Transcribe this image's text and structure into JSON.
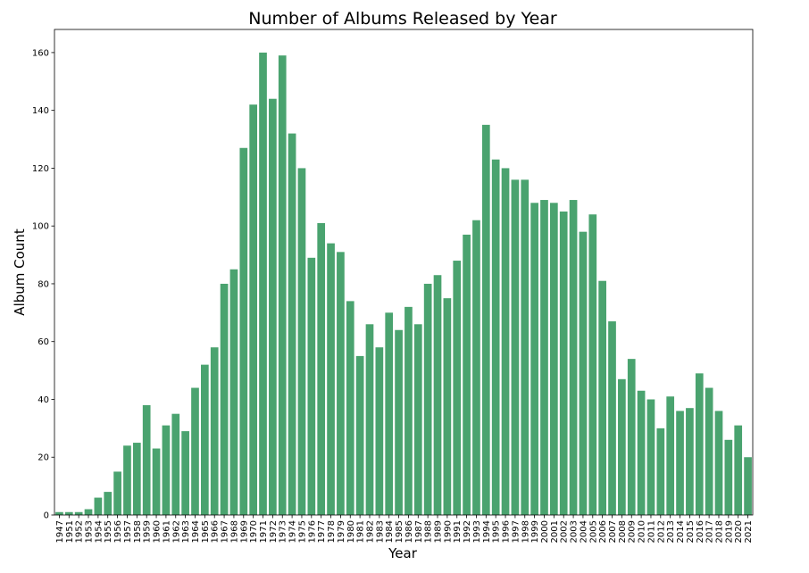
{
  "chart_data": {
    "type": "bar",
    "title": "Number of Albums Released by Year",
    "xlabel": "Year",
    "ylabel": "Album Count",
    "ylim": [
      0,
      168
    ],
    "yticks": [
      0,
      20,
      40,
      60,
      80,
      100,
      120,
      140,
      160
    ],
    "grid": false,
    "bar_color": "#4aa36f",
    "categories": [
      "1947",
      "1951",
      "1952",
      "1953",
      "1954",
      "1955",
      "1956",
      "1957",
      "1958",
      "1959",
      "1960",
      "1961",
      "1962",
      "1963",
      "1964",
      "1965",
      "1966",
      "1967",
      "1968",
      "1969",
      "1970",
      "1971",
      "1972",
      "1973",
      "1974",
      "1975",
      "1976",
      "1977",
      "1978",
      "1979",
      "1980",
      "1981",
      "1982",
      "1983",
      "1984",
      "1985",
      "1986",
      "1987",
      "1988",
      "1989",
      "1990",
      "1991",
      "1992",
      "1993",
      "1994",
      "1995",
      "1996",
      "1997",
      "1998",
      "1999",
      "2000",
      "2001",
      "2002",
      "2003",
      "2004",
      "2005",
      "2006",
      "2007",
      "2008",
      "2009",
      "2010",
      "2011",
      "2012",
      "2013",
      "2014",
      "2015",
      "2016",
      "2017",
      "2018",
      "2019",
      "2020",
      "2021"
    ],
    "values": [
      1,
      1,
      1,
      2,
      6,
      8,
      15,
      24,
      25,
      38,
      23,
      31,
      35,
      29,
      44,
      52,
      58,
      80,
      85,
      127,
      142,
      160,
      144,
      159,
      132,
      120,
      89,
      101,
      94,
      91,
      74,
      55,
      66,
      58,
      70,
      64,
      72,
      66,
      80,
      83,
      75,
      88,
      97,
      102,
      135,
      123,
      120,
      116,
      116,
      108,
      109,
      108,
      105,
      109,
      98,
      104,
      81,
      67,
      47,
      54,
      43,
      40,
      30,
      41,
      36,
      37,
      49,
      44,
      36,
      26,
      31,
      20
    ]
  }
}
